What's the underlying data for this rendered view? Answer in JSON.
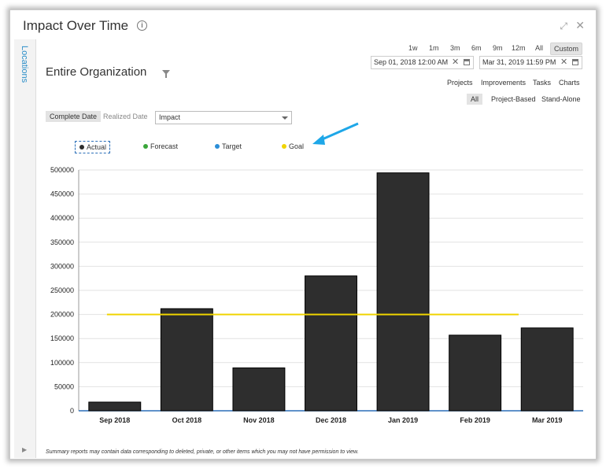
{
  "window": {
    "title": "Impact Over Time",
    "info_icon": "info-icon",
    "expand_icon": "expand-icon",
    "close_icon": "close-icon"
  },
  "sidebar": {
    "label": "Locations"
  },
  "time_range": {
    "options": [
      "1w",
      "1m",
      "3m",
      "6m",
      "9m",
      "12m",
      "All",
      "Custom"
    ],
    "selected": "Custom",
    "start": "Sep 01, 2018 12:00 AM",
    "end": "Mar 31, 2019 11:59 PM"
  },
  "heading": "Entire Organization",
  "view_links": [
    "Projects",
    "Improvements",
    "Tasks",
    "Charts"
  ],
  "filter_segments": [
    "All",
    "Project-Based",
    "Stand-Alone"
  ],
  "filter_selected": "All",
  "date_toggle": {
    "options": [
      "Complete Date",
      "Realized Date"
    ],
    "selected": "Complete Date"
  },
  "metric_select": {
    "value": "Impact"
  },
  "legend": [
    {
      "name": "Actual",
      "color": "#2e2e2e"
    },
    {
      "name": "Forecast",
      "color": "#3aa63a"
    },
    {
      "name": "Target",
      "color": "#2b8ed8"
    },
    {
      "name": "Goal",
      "color": "#f0d400"
    }
  ],
  "chart_data": {
    "type": "bar",
    "categories": [
      "Sep 2018",
      "Oct 2018",
      "Nov 2018",
      "Dec 2018",
      "Jan 2019",
      "Feb 2019",
      "Mar 2019"
    ],
    "series": [
      {
        "name": "Actual",
        "values": [
          18000,
          212000,
          89000,
          280000,
          494000,
          157000,
          172000
        ],
        "color": "#2e2e2e"
      },
      {
        "name": "Goal",
        "values": [
          200000,
          200000,
          200000,
          200000,
          200000,
          200000,
          200000
        ],
        "color": "#f0d400",
        "type": "line"
      }
    ],
    "ylim": [
      0,
      500000
    ],
    "yticks": [
      "0",
      "50000",
      "100000",
      "150000",
      "200000",
      "250000",
      "300000",
      "350000",
      "400000",
      "450000",
      "500000"
    ],
    "grid": true
  },
  "footnote": "Summary reports may contain data corresponding to deleted, private, or other items which you may not have permission to view."
}
